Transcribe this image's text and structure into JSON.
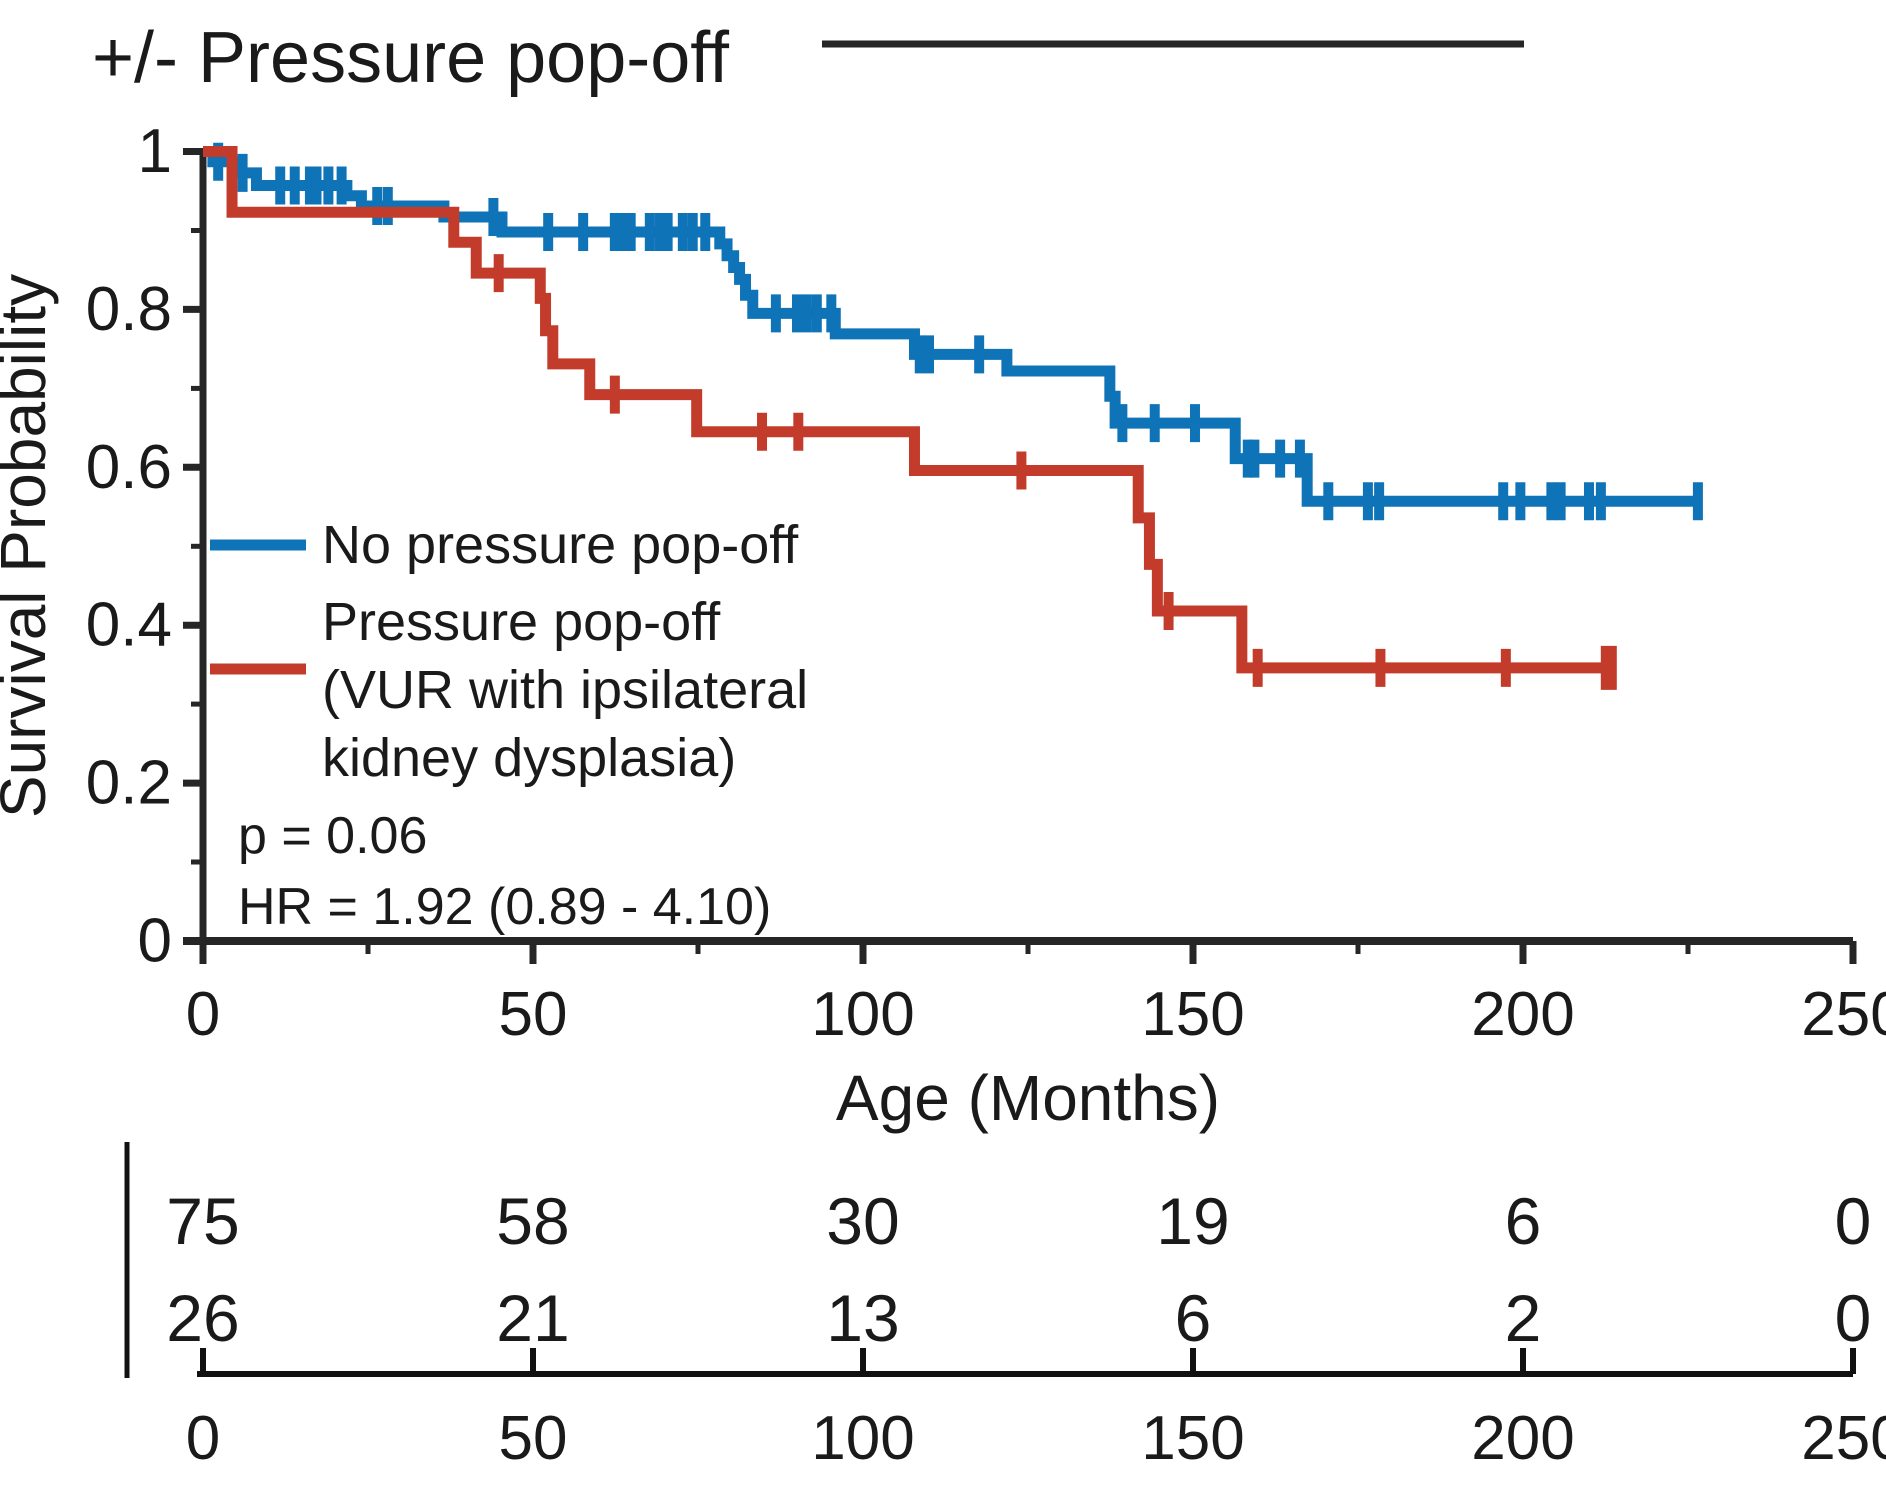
{
  "chart_data": {
    "type": "line",
    "subtype": "kaplan_meier_survival",
    "title": "+/- Pressure pop-off",
    "xlabel": "Age (Months)",
    "ylabel": "Survival Probability",
    "xlim": [
      0,
      250
    ],
    "ylim": [
      0,
      1
    ],
    "grid": false,
    "legend_position": "inside-left-middle",
    "x_tick_labels": [
      "0",
      "50",
      "100",
      "150",
      "200",
      "250"
    ],
    "x_ticks": [
      0,
      50,
      100,
      150,
      200,
      250
    ],
    "x_minor_ticks": [
      25,
      75,
      125,
      175,
      225
    ],
    "y_tick_labels": [
      "1",
      "0.8",
      "0.6",
      "0.4",
      "0.2",
      "0"
    ],
    "y_ticks": [
      1,
      0.8,
      0.6,
      0.4,
      0.2,
      0
    ],
    "y_minor_ticks": [
      0.9,
      0.7,
      0.5,
      0.3,
      0.1
    ],
    "stats": {
      "p_line": "p = 0.06",
      "hr_line": "HR = 1.92 (0.89 - 4.10)"
    },
    "series": [
      {
        "name": "No pressure pop-off",
        "legend_lines": [
          "No pressure pop-off"
        ],
        "color": "#0f73b8",
        "end": 226.5,
        "end_tick": "normal",
        "steps": [
          [
            0,
            1.0
          ],
          [
            1.5,
            0.987
          ],
          [
            5.2,
            0.973
          ],
          [
            8.1,
            0.957
          ],
          [
            21.8,
            0.944
          ],
          [
            24,
            0.931
          ],
          [
            36.5,
            0.917
          ],
          [
            45.3,
            0.898
          ],
          [
            78.3,
            0.883
          ],
          [
            79.4,
            0.868
          ],
          [
            80.4,
            0.853
          ],
          [
            81.3,
            0.838
          ],
          [
            82.2,
            0.818
          ],
          [
            83.3,
            0.795
          ],
          [
            95.8,
            0.769
          ],
          [
            107.8,
            0.743
          ],
          [
            121.8,
            0.722
          ],
          [
            137.4,
            0.69
          ],
          [
            138.2,
            0.656
          ],
          [
            156.4,
            0.611
          ],
          [
            167.3,
            0.557
          ]
        ],
        "censors": [
          [
            2.3,
            0.987
          ],
          [
            6,
            0.973
          ],
          [
            11.7,
            0.957
          ],
          [
            13.9,
            0.957
          ],
          [
            16.2,
            0.957
          ],
          [
            17.2,
            0.957
          ],
          [
            19,
            0.957
          ],
          [
            21,
            0.957
          ],
          [
            26.4,
            0.931
          ],
          [
            28,
            0.931
          ],
          [
            44,
            0.917
          ],
          [
            52.3,
            0.898
          ],
          [
            57.6,
            0.898
          ],
          [
            62.4,
            0.898
          ],
          [
            63.6,
            0.898
          ],
          [
            64.8,
            0.898
          ],
          [
            67.7,
            0.898
          ],
          [
            69.2,
            0.898
          ],
          [
            70.4,
            0.898
          ],
          [
            72.7,
            0.898
          ],
          [
            74.2,
            0.898
          ],
          [
            76.1,
            0.898
          ],
          [
            86.8,
            0.795
          ],
          [
            90,
            0.795
          ],
          [
            91.5,
            0.795
          ],
          [
            93,
            0.795
          ],
          [
            95.2,
            0.795
          ],
          [
            108.6,
            0.743
          ],
          [
            110,
            0.743
          ],
          [
            117.6,
            0.743
          ],
          [
            139.3,
            0.656
          ],
          [
            144.2,
            0.656
          ],
          [
            150.3,
            0.656
          ],
          [
            158.3,
            0.611
          ],
          [
            159.3,
            0.611
          ],
          [
            163.2,
            0.611
          ],
          [
            166.2,
            0.611
          ],
          [
            170.5,
            0.557
          ],
          [
            176.5,
            0.557
          ],
          [
            178.2,
            0.557
          ],
          [
            197,
            0.557
          ],
          [
            199.6,
            0.557
          ],
          [
            204.3,
            0.557
          ],
          [
            205.7,
            0.557
          ],
          [
            210,
            0.557
          ],
          [
            211.8,
            0.557
          ]
        ]
      },
      {
        "name": "Pressure pop-off (VUR with ipsilateral kidney dysplasia)",
        "legend_lines": [
          "Pressure pop-off",
          "(VUR with ipsilateral",
          "kidney dysplasia)"
        ],
        "color": "#c33c2b",
        "end": 213,
        "end_tick": "thick",
        "steps": [
          [
            0,
            1.0
          ],
          [
            4.4,
            0.923
          ],
          [
            38,
            0.885
          ],
          [
            41.4,
            0.846
          ],
          [
            51.1,
            0.814
          ],
          [
            51.9,
            0.773
          ],
          [
            53,
            0.731
          ],
          [
            58.6,
            0.692
          ],
          [
            74.8,
            0.645
          ],
          [
            107.8,
            0.596
          ],
          [
            141.7,
            0.536
          ],
          [
            143.4,
            0.477
          ],
          [
            144.6,
            0.418
          ],
          [
            157.4,
            0.346
          ]
        ],
        "censors": [
          [
            44.8,
            0.846
          ],
          [
            62.4,
            0.692
          ],
          [
            84.7,
            0.645
          ],
          [
            90.2,
            0.645
          ],
          [
            124,
            0.596
          ],
          [
            146.3,
            0.418
          ],
          [
            159.8,
            0.346
          ],
          [
            178.4,
            0.346
          ],
          [
            197.4,
            0.346
          ]
        ]
      }
    ],
    "risk_table": {
      "time_labels": [
        "0",
        "50",
        "100",
        "150",
        "200",
        "250"
      ],
      "times": [
        0,
        50,
        100,
        150,
        200,
        250
      ],
      "rows": [
        {
          "series": "No pressure pop-off",
          "counts": [
            75,
            58,
            30,
            19,
            6,
            0
          ]
        },
        {
          "series": "Pressure pop-off (VUR with ipsilateral kidney dysplasia)",
          "counts": [
            26,
            21,
            13,
            6,
            2,
            0
          ]
        }
      ]
    }
  }
}
